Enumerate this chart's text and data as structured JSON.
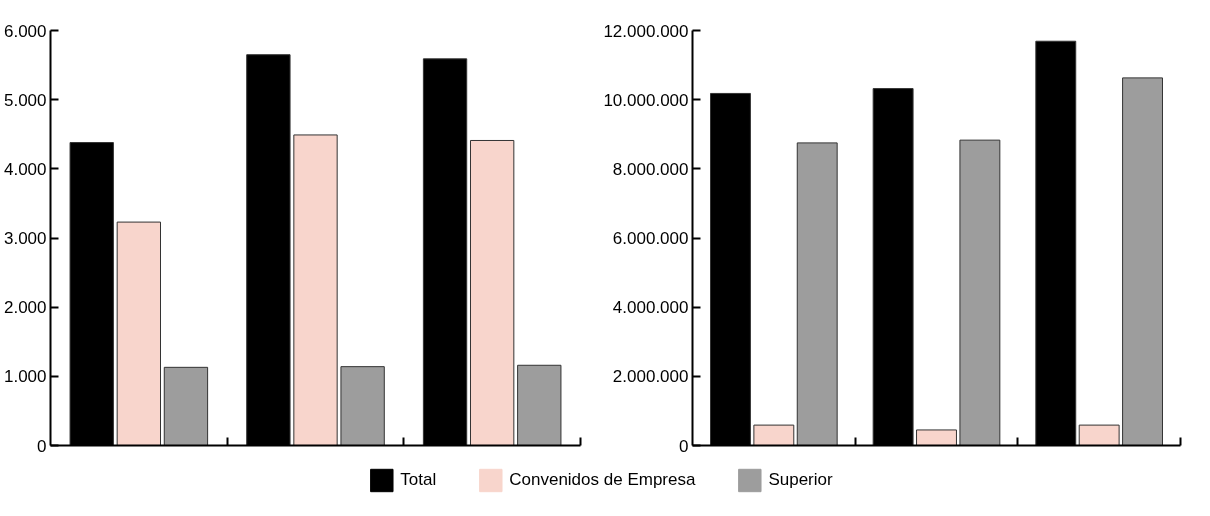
{
  "chart_data": [
    {
      "type": "bar",
      "categories": [
        null,
        null,
        null
      ],
      "series": [
        {
          "name": "Total",
          "color": "#000000",
          "values": [
            4380,
            5650,
            5590
          ]
        },
        {
          "name": "Convenidos de Empresa",
          "color": "#f8d5cc",
          "values": [
            3230,
            4490,
            4410
          ]
        },
        {
          "name": "Superior",
          "color": "#9d9d9d",
          "values": [
            1130,
            1140,
            1160
          ]
        }
      ],
      "ylim": [
        0,
        6000
      ],
      "yticks": [
        0,
        {
          "value": 1000,
          "label": "1.000"
        },
        {
          "value": 2000,
          "label": "2.000"
        },
        {
          "value": 3000,
          "label": "3.000"
        },
        {
          "value": 4000,
          "label": "4.000"
        },
        {
          "value": 5000,
          "label": "5.000"
        },
        {
          "value": 6000,
          "label": "6.000"
        }
      ],
      "tick_labels": "y",
      "grid": false,
      "legend": "bottom"
    },
    {
      "type": "bar",
      "categories": [
        null,
        null,
        null
      ],
      "series": [
        {
          "name": "Total",
          "color": "#000000",
          "values": [
            10180000,
            10320000,
            11690000
          ]
        },
        {
          "name": "Convenidos de Empresa",
          "color": "#f8d5cc",
          "values": [
            590000,
            450000,
            590000
          ]
        },
        {
          "name": "Superior",
          "color": "#9d9d9d",
          "values": [
            8750000,
            8830000,
            10630000
          ]
        }
      ],
      "ylim": [
        0,
        12000000
      ],
      "yticks": [
        0,
        {
          "value": 2000000,
          "label": "2.000.000"
        },
        {
          "value": 4000000,
          "label": "4.000.000"
        },
        {
          "value": 6000000,
          "label": "6.000.000"
        },
        {
          "value": 8000000,
          "label": "8.000.000"
        },
        {
          "value": 10000000,
          "label": "10.000.000"
        },
        {
          "value": 12000000,
          "label": "12.000.000"
        }
      ],
      "tick_labels": "y",
      "grid": false,
      "legend": "bottom"
    }
  ]
}
